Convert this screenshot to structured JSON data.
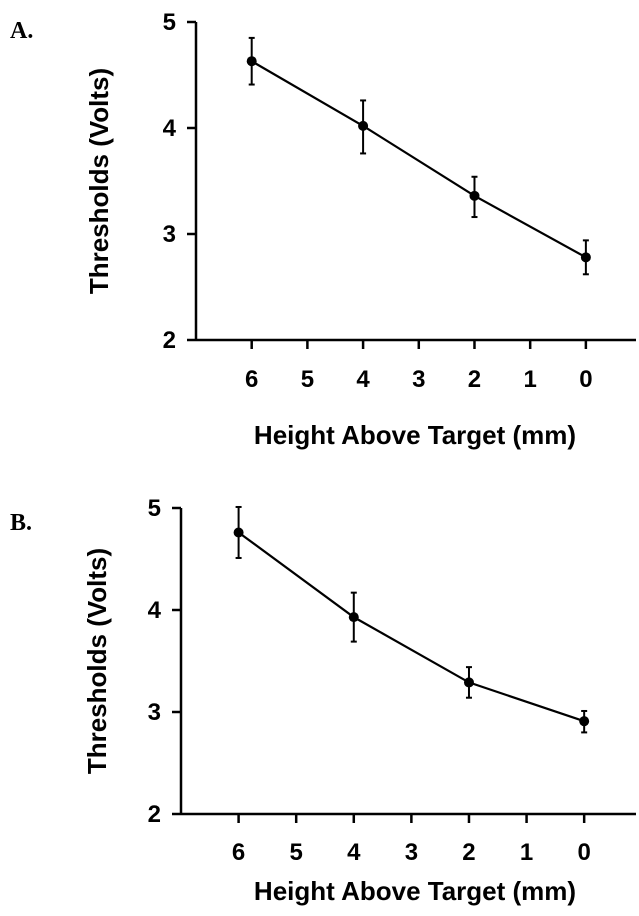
{
  "chart_data": [
    {
      "type": "line",
      "panel_label": "A.",
      "xlabel": "Height Above Target  (mm)",
      "ylabel": "Thresholds  (Volts)",
      "x_ticks": [
        6,
        5,
        4,
        3,
        2,
        1,
        0
      ],
      "y_ticks": [
        2,
        3,
        4,
        5
      ],
      "xlim": [
        7,
        -0.9
      ],
      "ylim": [
        2,
        5
      ],
      "x_reversed": true,
      "series": [
        {
          "x": [
            6,
            4,
            2,
            0
          ],
          "y": [
            4.63,
            4.02,
            3.36,
            2.78
          ],
          "err_low": [
            0.22,
            0.26,
            0.2,
            0.16
          ],
          "err_high": [
            0.22,
            0.24,
            0.18,
            0.16
          ]
        }
      ]
    },
    {
      "type": "line",
      "panel_label": "B.",
      "xlabel": "Height Above Target (mm)",
      "ylabel": "Thresholds  (Volts)",
      "x_ticks": [
        6,
        5,
        4,
        3,
        2,
        1,
        0
      ],
      "y_ticks": [
        2,
        3,
        4,
        5
      ],
      "xlim": [
        7,
        -0.9
      ],
      "ylim": [
        2,
        5
      ],
      "x_reversed": true,
      "series": [
        {
          "x": [
            6,
            4,
            2,
            0
          ],
          "y": [
            4.76,
            3.93,
            3.29,
            2.91
          ],
          "err_low": [
            0.25,
            0.24,
            0.15,
            0.11
          ],
          "err_high": [
            0.25,
            0.24,
            0.15,
            0.1
          ]
        }
      ]
    }
  ]
}
